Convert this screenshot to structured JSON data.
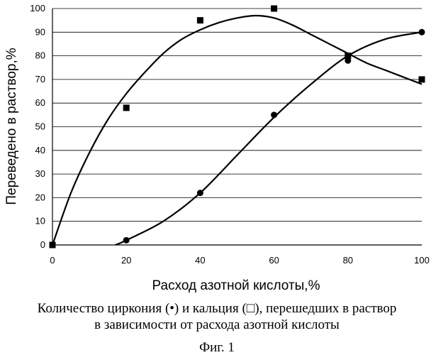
{
  "chart_data": {
    "type": "scatter",
    "title": "",
    "xlabel": "Расход азотной кислоты,%",
    "ylabel": "Переведено в раствор,%",
    "xlim": [
      0,
      100
    ],
    "ylim": [
      0,
      100
    ],
    "x_ticks": [
      0,
      20,
      40,
      60,
      80,
      100
    ],
    "y_ticks": [
      0,
      10,
      20,
      30,
      40,
      50,
      60,
      70,
      80,
      90,
      100
    ],
    "grid": "horizontal",
    "legend": "none",
    "series": [
      {
        "marker": "circle",
        "points": [
          {
            "x": 0,
            "y": 0
          },
          {
            "x": 20,
            "y": 2
          },
          {
            "x": 40,
            "y": 22
          },
          {
            "x": 60,
            "y": 55
          },
          {
            "x": 80,
            "y": 78
          },
          {
            "x": 100,
            "y": 90
          }
        ],
        "fit_curve": [
          [
            17,
            0
          ],
          [
            20,
            2
          ],
          [
            30,
            10
          ],
          [
            40,
            22
          ],
          [
            50,
            38
          ],
          [
            60,
            54
          ],
          [
            70,
            68
          ],
          [
            80,
            80
          ],
          [
            90,
            87
          ],
          [
            100,
            90
          ]
        ]
      },
      {
        "marker": "square",
        "points": [
          {
            "x": 0,
            "y": 0
          },
          {
            "x": 20,
            "y": 58
          },
          {
            "x": 40,
            "y": 95
          },
          {
            "x": 60,
            "y": 100
          },
          {
            "x": 80,
            "y": 80
          },
          {
            "x": 100,
            "y": 70
          }
        ],
        "fit_curve": [
          [
            0,
            0
          ],
          [
            5,
            22
          ],
          [
            10,
            39
          ],
          [
            15,
            53
          ],
          [
            20,
            64
          ],
          [
            25,
            73
          ],
          [
            30,
            81
          ],
          [
            35,
            87
          ],
          [
            40,
            91
          ],
          [
            45,
            94
          ],
          [
            50,
            96
          ],
          [
            55,
            97
          ],
          [
            60,
            96
          ],
          [
            65,
            93
          ],
          [
            70,
            89
          ],
          [
            75,
            85
          ],
          [
            80,
            81
          ],
          [
            85,
            77
          ],
          [
            90,
            74
          ],
          [
            95,
            71
          ],
          [
            100,
            68
          ]
        ]
      }
    ],
    "colors": {
      "marks": "#000000",
      "grid": "#000000"
    }
  },
  "caption": {
    "line1": "Количество циркония (•) и кальция (□), перешедших в раствор",
    "line2": "в зависимости от расхода азотной кислоты",
    "figure_label": "Фиг. 1"
  }
}
